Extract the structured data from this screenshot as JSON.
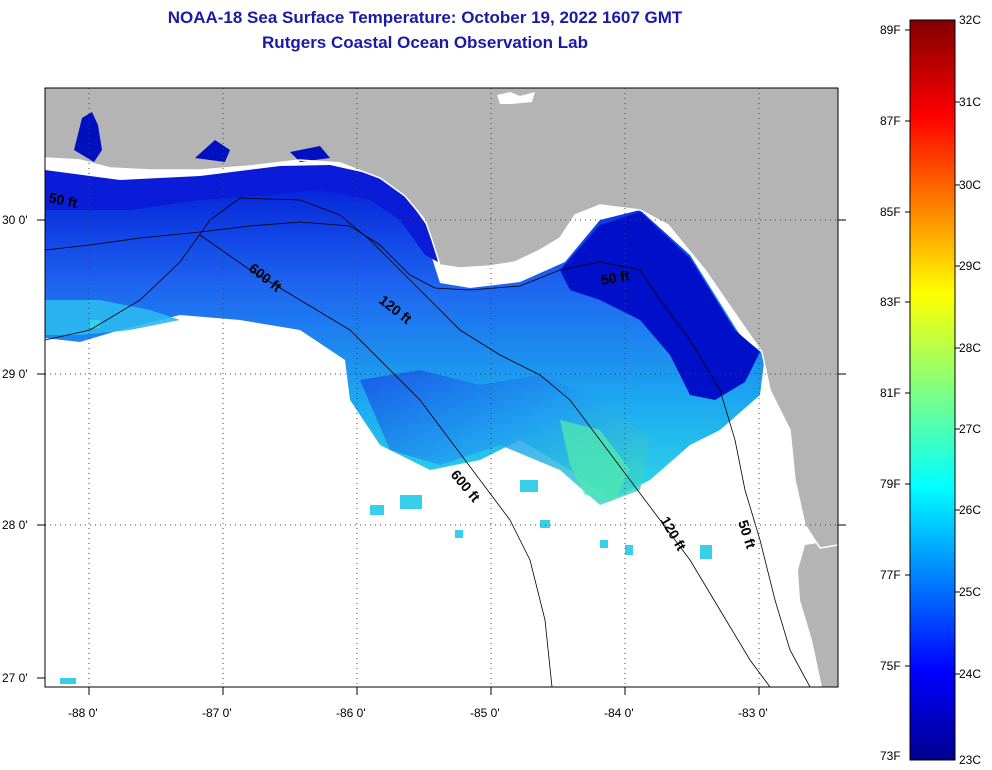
{
  "header": {
    "title": "NOAA-18 Sea Surface Temperature:  October 19, 2022 1607 GMT",
    "subtitle": "Rutgers Coastal Ocean Observation Lab"
  },
  "map": {
    "region": "Northeastern Gulf of Mexico / Florida Big Bend",
    "lon_ticks": [
      "-88 0'",
      "-87 0'",
      "-86 0'",
      "-85 0'",
      "-84 0'",
      "-83 0'"
    ],
    "lat_ticks": [
      "30 0'",
      "29 0'",
      "28 0'",
      "27 0'"
    ],
    "contour_labels": [
      "50 ft",
      "600 ft",
      "120 ft",
      "50 ft",
      "600 ft",
      "120 ft",
      "50 ft"
    ],
    "colors": {
      "land": "#b4b4b4",
      "no_data": "#ffffff"
    }
  },
  "colorbar": {
    "fahrenheit_labels": [
      "89F",
      "87F",
      "85F",
      "83F",
      "81F",
      "79F",
      "77F",
      "75F",
      "73F"
    ],
    "celsius_labels": [
      "32C",
      "31C",
      "30C",
      "29C",
      "28C",
      "27C",
      "26C",
      "25C",
      "24C",
      "23C"
    ],
    "colormap": [
      "#00008f",
      "#0000ff",
      "#0080ff",
      "#00ffff",
      "#80ff80",
      "#ffff00",
      "#ff8000",
      "#ff0000",
      "#800000"
    ]
  }
}
